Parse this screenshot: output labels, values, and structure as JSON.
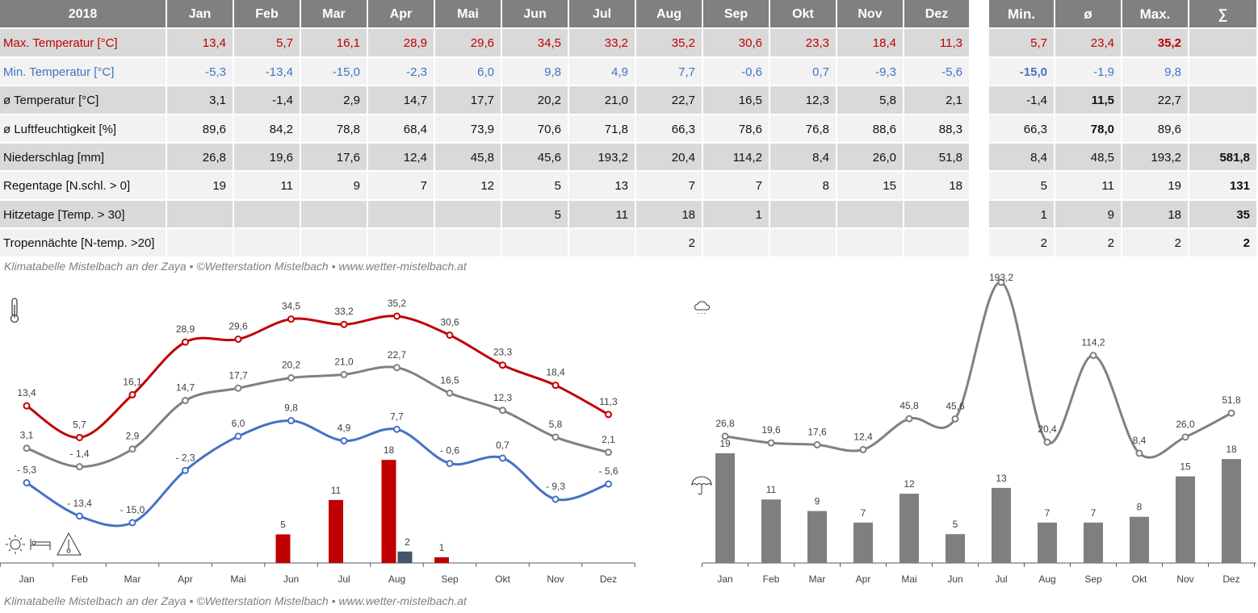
{
  "table": {
    "year": "2018",
    "months": [
      "Jan",
      "Feb",
      "Mar",
      "Apr",
      "Mai",
      "Jun",
      "Jul",
      "Aug",
      "Sep",
      "Okt",
      "Nov",
      "Dez"
    ],
    "stat_headers": [
      "Min.",
      "ø",
      "Max.",
      "∑"
    ],
    "rows": [
      {
        "label": "Max. Temperatur [°C]",
        "color": "#c00000",
        "values": [
          "13,4",
          "5,7",
          "16,1",
          "28,9",
          "29,6",
          "34,5",
          "33,2",
          "35,2",
          "30,6",
          "23,3",
          "18,4",
          "11,3"
        ],
        "stats": [
          "5,7",
          "23,4",
          "35,2",
          ""
        ]
      },
      {
        "label": "Min. Temperatur [°C]",
        "color": "#4472c4",
        "values": [
          "-5,3",
          "-13,4",
          "-15,0",
          "-2,3",
          "6,0",
          "9,8",
          "4,9",
          "7,7",
          "-0,6",
          "0,7",
          "-9,3",
          "-5,6"
        ],
        "stats": [
          "-15,0",
          "-1,9",
          "9,8",
          ""
        ]
      },
      {
        "label": "ø Temperatur [°C]",
        "color": "#111111",
        "values": [
          "3,1",
          "-1,4",
          "2,9",
          "14,7",
          "17,7",
          "20,2",
          "21,0",
          "22,7",
          "16,5",
          "12,3",
          "5,8",
          "2,1"
        ],
        "stats": [
          "-1,4",
          "11,5",
          "22,7",
          ""
        ]
      },
      {
        "label": "ø Luftfeuchtigkeit [%]",
        "color": "#111111",
        "values": [
          "89,6",
          "84,2",
          "78,8",
          "68,4",
          "73,9",
          "70,6",
          "71,8",
          "66,3",
          "78,6",
          "76,8",
          "88,6",
          "88,3"
        ],
        "stats": [
          "66,3",
          "78,0",
          "89,6",
          ""
        ]
      },
      {
        "label": "Niederschlag [mm]",
        "color": "#111111",
        "values": [
          "26,8",
          "19,6",
          "17,6",
          "12,4",
          "45,8",
          "45,6",
          "193,2",
          "20,4",
          "114,2",
          "8,4",
          "26,0",
          "51,8"
        ],
        "stats": [
          "8,4",
          "48,5",
          "193,2",
          "581,8"
        ]
      },
      {
        "label": "Regentage [N.schl. > 0]",
        "color": "#111111",
        "values": [
          "19",
          "11",
          "9",
          "7",
          "12",
          "5",
          "13",
          "7",
          "7",
          "8",
          "15",
          "18"
        ],
        "stats": [
          "5",
          "11",
          "19",
          "131"
        ]
      },
      {
        "label": "Hitzetage [Temp. > 30]",
        "color": "#111111",
        "values": [
          "",
          "",
          "",
          "",
          "",
          "5",
          "11",
          "18",
          "1",
          "",
          "",
          ""
        ],
        "stats": [
          "1",
          "9",
          "18",
          "35"
        ]
      },
      {
        "label": "Tropennächte [N-temp. >20]",
        "color": "#111111",
        "values": [
          "",
          "",
          "",
          "",
          "",
          "",
          "",
          "2",
          "",
          "",
          "",
          ""
        ],
        "stats": [
          "2",
          "2",
          "2",
          "2"
        ]
      }
    ]
  },
  "footer": "Klimatabelle Mistelbach an der Zaya  •  ©Wetterstation Mistelbach  •  www.wetter-mistelbach.at",
  "icons": {
    "left_top": "thermometer-icon",
    "left_bottom": [
      "sun-icon",
      "bed-icon",
      "warning-thermometer-icon"
    ],
    "right_top": "rain-cloud-icon",
    "right_bottom": "umbrella-icon"
  },
  "chart_data": [
    {
      "type": "line",
      "categories": [
        "Jan",
        "Feb",
        "Mar",
        "Apr",
        "Mai",
        "Jun",
        "Jul",
        "Aug",
        "Sep",
        "Okt",
        "Nov",
        "Dez"
      ],
      "series": [
        {
          "values": [
            13.4,
            5.7,
            16.1,
            28.9,
            29.6,
            34.5,
            33.2,
            35.2,
            30.6,
            23.3,
            18.4,
            11.3
          ],
          "labels": [
            "13,4",
            "5,7",
            "16,1",
            "28,9",
            "29,6",
            "34,5",
            "33,2",
            "35,2",
            "30,6",
            "23,3",
            "18,4",
            "11,3"
          ],
          "color": "#c00000"
        },
        {
          "values": [
            3.1,
            -1.4,
            2.9,
            14.7,
            17.7,
            20.2,
            21.0,
            22.7,
            16.5,
            12.3,
            5.8,
            2.1
          ],
          "labels": [
            "3,1",
            "- 1,4",
            "2,9",
            "14,7",
            "17,7",
            "20,2",
            "21,0",
            "22,7",
            "16,5",
            "12,3",
            "5,8",
            "2,1"
          ],
          "color": "#808080"
        },
        {
          "values": [
            -5.3,
            -13.4,
            -15.0,
            -2.3,
            6.0,
            9.8,
            4.9,
            7.7,
            -0.6,
            0.7,
            -9.3,
            -5.6
          ],
          "labels": [
            "- 5,3",
            "- 13,4",
            "- 15,0",
            "- 2,3",
            "6,0",
            "9,8",
            "4,9",
            "7,7",
            "- 0,6",
            "0,7",
            "- 9,3",
            "- 5,6"
          ],
          "color": "#4472c4"
        }
      ],
      "bars": [
        {
          "values": [
            0,
            0,
            0,
            0,
            0,
            5,
            11,
            18,
            1,
            0,
            0,
            0
          ],
          "labels": [
            "",
            "",
            "",
            "",
            "",
            "5",
            "11",
            "18",
            "1",
            "",
            "",
            ""
          ],
          "color": "#c00000"
        },
        {
          "values": [
            0,
            0,
            0,
            0,
            0,
            0,
            0,
            2,
            0,
            0,
            0,
            0
          ],
          "labels": [
            "",
            "",
            "",
            "",
            "",
            "",
            "",
            "2",
            "",
            "",
            "",
            ""
          ],
          "color": "#44546a"
        }
      ]
    },
    {
      "type": "bar+line",
      "categories": [
        "Jan",
        "Feb",
        "Mar",
        "Apr",
        "Mai",
        "Jun",
        "Jul",
        "Aug",
        "Sep",
        "Okt",
        "Nov",
        "Dez"
      ],
      "line": {
        "values": [
          26.8,
          19.6,
          17.6,
          12.4,
          45.8,
          45.6,
          193.2,
          20.4,
          114.2,
          8.4,
          26.0,
          51.8
        ],
        "labels": [
          "26,8",
          "19,6",
          "17,6",
          "12,4",
          "45,8",
          "45,6",
          "193,2",
          "20,4",
          "114,2",
          "8,4",
          "26,0",
          "51,8"
        ],
        "color": "#808080"
      },
      "bars": {
        "values": [
          19,
          11,
          9,
          7,
          12,
          5,
          13,
          7,
          7,
          8,
          15,
          18
        ],
        "labels": [
          "19",
          "11",
          "9",
          "7",
          "12",
          "5",
          "13",
          "7",
          "7",
          "8",
          "15",
          "18"
        ],
        "color": "#7f7f7f"
      }
    }
  ]
}
